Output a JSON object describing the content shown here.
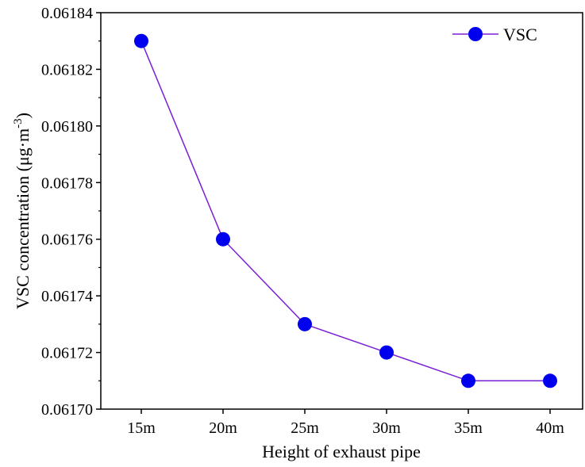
{
  "chart_data": {
    "type": "line",
    "categories": [
      "15m",
      "20m",
      "25m",
      "30m",
      "35m",
      "40m"
    ],
    "series": [
      {
        "name": "VSC",
        "values": [
          0.06183,
          0.06176,
          0.06173,
          0.06172,
          0.06171,
          0.06171
        ],
        "color": "#7b1fd6",
        "marker_color": "#0000ee"
      }
    ],
    "xlabel": "Height of exhaust pipe",
    "ylabel": "VSC concentration (μg·m",
    "ylabel_superscript": "-3",
    "ylabel_close": ")",
    "ylim": [
      0.0617,
      0.06184
    ],
    "yticks": [
      "0.06170",
      "0.06172",
      "0.06174",
      "0.06176",
      "0.06178",
      "0.06180",
      "0.06182",
      "0.06184"
    ],
    "grid": false,
    "legend_position": "top-right"
  }
}
